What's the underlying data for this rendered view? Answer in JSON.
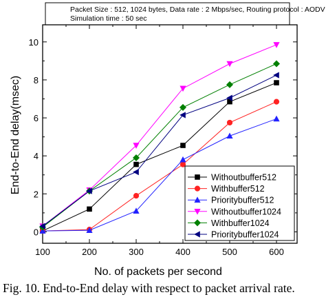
{
  "info_box": {
    "line1": "Packet Size : 512, 1024 bytes, Data rate : 2 Mbps/sec, Routing protocol : AODV",
    "line2": "Simulation time : 50 sec"
  },
  "caption": "Fig. 10. End-to-End delay with respect to packet arrival rate.",
  "chart_data": {
    "type": "line",
    "xlabel": "No. of packets per second",
    "ylabel": "End-to-End delay(msec)",
    "xlim": [
      100,
      600
    ],
    "ylim": [
      -0.6,
      10.9
    ],
    "x_ticks": [
      100,
      200,
      300,
      400,
      500,
      600
    ],
    "y_ticks": [
      0,
      2,
      4,
      6,
      8,
      10
    ],
    "grid": false,
    "legend_position": "bottom-right",
    "x": [
      100,
      200,
      300,
      400,
      500,
      600
    ],
    "series": [
      {
        "name": "Withoutbuffer512",
        "color": "#000000",
        "marker": "square",
        "values": [
          0.05,
          1.2,
          3.55,
          4.55,
          6.85,
          7.85
        ]
      },
      {
        "name": "Withbuffer512",
        "color": "#ff2222",
        "marker": "circle",
        "values": [
          0.05,
          0.12,
          1.9,
          3.55,
          5.75,
          6.85
        ]
      },
      {
        "name": "Prioritybuffer512",
        "color": "#2222ff",
        "marker": "triangle-up",
        "values": [
          0.05,
          0.08,
          1.1,
          3.8,
          5.05,
          5.95
        ]
      },
      {
        "name": "Withoutbuffer1024",
        "color": "#ff00ff",
        "marker": "triangle-down",
        "values": [
          0.3,
          2.2,
          4.55,
          7.55,
          8.85,
          9.85
        ]
      },
      {
        "name": "Withbuffer1024",
        "color": "#008000",
        "marker": "diamond",
        "values": [
          0.25,
          2.15,
          3.9,
          6.55,
          7.75,
          8.85
        ]
      },
      {
        "name": "Prioritybuffer1024",
        "color": "#000080",
        "marker": "triangle-left",
        "values": [
          0.3,
          2.15,
          3.15,
          6.15,
          7.05,
          8.25
        ]
      }
    ]
  }
}
